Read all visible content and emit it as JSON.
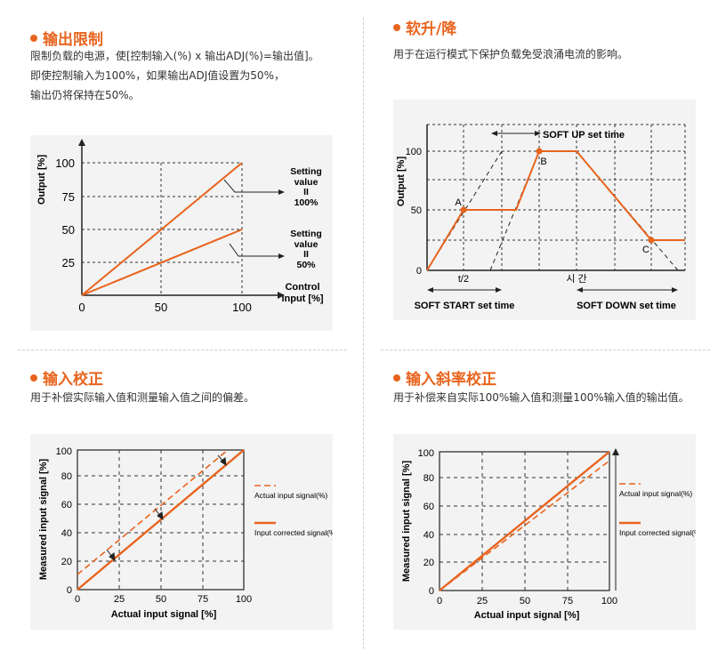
{
  "colors": {
    "accent": "#e8641e",
    "axis": "#222222",
    "grid": "#333333",
    "panel": "#f3f3f3"
  },
  "sections": [
    {
      "title": "输出限制",
      "desc": [
        "限制负载的电源，使[控制输入(%) x 输出ADJ(%)=输出值]。",
        "即使控制输入为100%，如果输出ADJ值设置为50%，",
        "输出仍将保持在50%。"
      ],
      "chart": {
        "ylabel": "Output [%]",
        "xlabel_line1": "Control",
        "xlabel_line2": "input [%]",
        "x_ticks": [
          "0",
          "50",
          "100"
        ],
        "y_ticks": [
          "100",
          "75",
          "50",
          "25"
        ],
        "annotation_100": [
          "Setting",
          "value",
          "II",
          "100%"
        ],
        "annotation_50": [
          "Setting",
          "value",
          "II",
          "50%"
        ]
      }
    },
    {
      "title": "软升/降",
      "desc": [
        "用于在运行模式下保护负载免受浪涌电流的影响。"
      ],
      "chart": {
        "ylabel": "Output [%]",
        "y_ticks": [
          "100",
          "50",
          "0"
        ],
        "x_tick_t2": "t/2",
        "x_tick_time": "시 간",
        "soft_up_label": "SOFT UP set time",
        "soft_start_label": "SOFT START set time",
        "soft_down_label": "SOFT DOWN set time",
        "points": [
          "A",
          "B",
          "C"
        ]
      }
    },
    {
      "title": "输入校正",
      "desc": [
        "用于补偿实际输入值和测量输入值之间的偏差。"
      ],
      "chart": {
        "ylabel": "Measured input signal [%]",
        "xlabel": "Actual input signal [%]",
        "x_ticks": [
          "0",
          "25",
          "50",
          "75",
          "100"
        ],
        "y_ticks": [
          "100",
          "80",
          "60",
          "40",
          "20",
          "0"
        ],
        "legend_actual": "Actual input signal(%)",
        "legend_corrected": "Input corrected signal(%)"
      }
    },
    {
      "title": "输入斜率校正",
      "desc": [
        "用于补偿来自实际100%输入值和测量100%输入值的输出值。"
      ],
      "chart": {
        "ylabel": "Measured input signal [%]",
        "xlabel": "Actual input signal [%]",
        "x_ticks": [
          "0",
          "25",
          "50",
          "75",
          "100"
        ],
        "y_ticks": [
          "100",
          "80",
          "60",
          "40",
          "20",
          "0"
        ],
        "legend_actual": "Actual input signal(%)",
        "legend_corrected": "Input corrected signal(%)"
      }
    }
  ]
}
